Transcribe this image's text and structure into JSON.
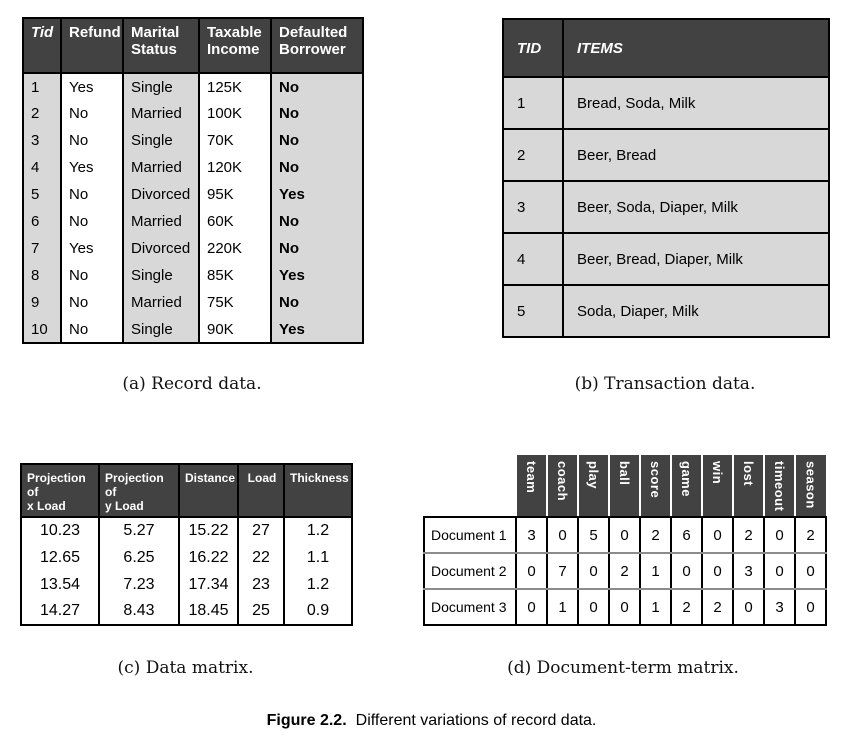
{
  "record_table": {
    "headers": [
      "Tid",
      "Refund",
      "Marital\nStatus",
      "Taxable\nIncome",
      "Defaulted\nBorrower"
    ],
    "rows": [
      [
        "1",
        "Yes",
        "Single",
        "125K",
        "No"
      ],
      [
        "2",
        "No",
        "Married",
        "100K",
        "No"
      ],
      [
        "3",
        "No",
        "Single",
        "70K",
        "No"
      ],
      [
        "4",
        "Yes",
        "Married",
        "120K",
        "No"
      ],
      [
        "5",
        "No",
        "Divorced",
        "95K",
        "Yes"
      ],
      [
        "6",
        "No",
        "Married",
        "60K",
        "No"
      ],
      [
        "7",
        "Yes",
        "Divorced",
        "220K",
        "No"
      ],
      [
        "8",
        "No",
        "Single",
        "85K",
        "Yes"
      ],
      [
        "9",
        "No",
        "Married",
        "75K",
        "No"
      ],
      [
        "10",
        "No",
        "Single",
        "90K",
        "Yes"
      ]
    ]
  },
  "transaction_table": {
    "headers": [
      "TID",
      "ITEMS"
    ],
    "rows": [
      [
        "1",
        "Bread, Soda, Milk"
      ],
      [
        "2",
        "Beer, Bread"
      ],
      [
        "3",
        "Beer, Soda, Diaper, Milk"
      ],
      [
        "4",
        "Beer, Bread, Diaper, Milk"
      ],
      [
        "5",
        "Soda, Diaper, Milk"
      ]
    ]
  },
  "data_matrix": {
    "headers": [
      "Projection of\nx Load",
      "Projection of\ny Load",
      "Distance",
      "Load",
      "Thickness"
    ],
    "rows": [
      [
        "10.23",
        "5.27",
        "15.22",
        "27",
        "1.2"
      ],
      [
        "12.65",
        "6.25",
        "16.22",
        "22",
        "1.1"
      ],
      [
        "13.54",
        "7.23",
        "17.34",
        "23",
        "1.2"
      ],
      [
        "14.27",
        "8.43",
        "18.45",
        "25",
        "0.9"
      ]
    ]
  },
  "document_term": {
    "terms": [
      "team",
      "coach",
      "play",
      "ball",
      "score",
      "game",
      "win",
      "lost",
      "timeout",
      "season"
    ],
    "rows": [
      {
        "label": "Document 1",
        "values": [
          "3",
          "0",
          "5",
          "0",
          "2",
          "6",
          "0",
          "2",
          "0",
          "2"
        ]
      },
      {
        "label": "Document 2",
        "values": [
          "0",
          "7",
          "0",
          "2",
          "1",
          "0",
          "0",
          "3",
          "0",
          "0"
        ]
      },
      {
        "label": "Document 3",
        "values": [
          "0",
          "1",
          "0",
          "0",
          "1",
          "2",
          "2",
          "0",
          "3",
          "0"
        ]
      }
    ]
  },
  "captions": {
    "a": "(a) Record data.",
    "b": "(b) Transaction data.",
    "c": "(c) Data matrix.",
    "d": "(d) Document-term matrix."
  },
  "figure_caption": {
    "label": "Figure 2.2.",
    "text": "Different variations of record data."
  },
  "colors": {
    "header_bg": "#424242",
    "header_text": "#ffffff",
    "row_gray": "#d8d8d8",
    "border": "#000000",
    "row_separator_gray": "#8c8c8c",
    "background": "#ffffff"
  }
}
